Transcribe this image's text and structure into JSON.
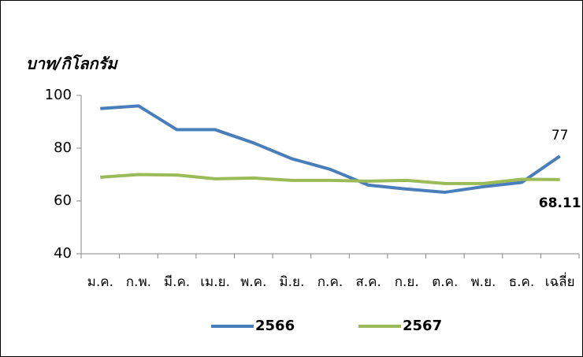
{
  "chart_data": {
    "type": "line",
    "ylabel": "บาท/กิโลกรัม",
    "categories": [
      "ม.ค.",
      "ก.พ.",
      "มี.ค.",
      "เม.ย.",
      "พ.ค.",
      "มิ.ย.",
      "ก.ค.",
      "ส.ค.",
      "ก.ย.",
      "ต.ค.",
      "พ.ย.",
      "ธ.ค.",
      "เฉลี่ย"
    ],
    "series": [
      {
        "name": "2566",
        "color": "#4a7ebb",
        "label_color": "#404040",
        "values": [
          95,
          96,
          87,
          87,
          82,
          76,
          72,
          66,
          64.5,
          63.3,
          65.4,
          67,
          77
        ],
        "value_labels": [
          null,
          null,
          null,
          null,
          null,
          null,
          null,
          null,
          null,
          null,
          null,
          null,
          "77"
        ]
      },
      {
        "name": "2567",
        "color": "#9bbb59",
        "label_color": "#ff0000",
        "values": [
          69,
          70,
          69.8,
          68.4,
          68.7,
          67.8,
          67.8,
          67.5,
          67.8,
          66.6,
          66.6,
          68.2,
          68.11
        ],
        "value_labels": [
          null,
          null,
          null,
          null,
          null,
          null,
          null,
          null,
          null,
          null,
          null,
          null,
          "68.11"
        ]
      }
    ],
    "ylim": [
      40,
      100
    ],
    "yticks": [
      40,
      60,
      80,
      100
    ],
    "grid": false,
    "legend": "bottom"
  }
}
